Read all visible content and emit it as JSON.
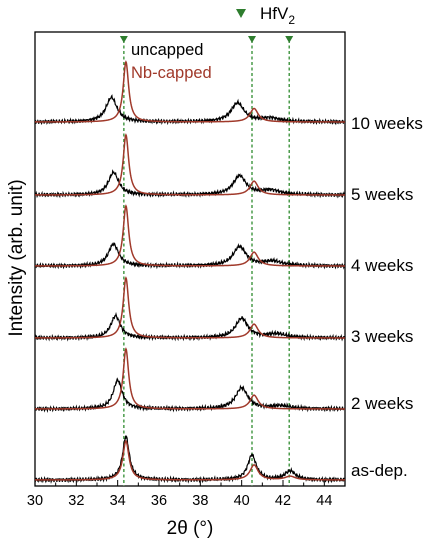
{
  "chart_data": {
    "type": "line",
    "xlabel": "2θ (°)",
    "ylabel": "Intensity (arb. unit)",
    "xlim": [
      30,
      45
    ],
    "x_ticks": [
      "30",
      "32",
      "34",
      "36",
      "38",
      "40",
      "42",
      "44"
    ],
    "reference_label_main": "HfV",
    "reference_label_sub": "2",
    "reference_positions": [
      34.3,
      40.5,
      42.3
    ],
    "legend": [
      {
        "name": "uncapped",
        "color": "#000000"
      },
      {
        "name": "Nb-capped",
        "color": "#a0392a"
      }
    ],
    "samples": [
      {
        "label": "10 weeks",
        "uncapped_peaks": [
          [
            33.7,
            8.2,
            0.32
          ],
          [
            39.8,
            6.3,
            0.38
          ],
          [
            41.4,
            1.2,
            0.55
          ]
        ],
        "capped_peaks": [
          [
            34.4,
            20,
            0.16
          ],
          [
            40.6,
            4.5,
            0.24
          ]
        ]
      },
      {
        "label": "5 weeks",
        "uncapped_peaks": [
          [
            33.8,
            7.5,
            0.3
          ],
          [
            39.9,
            6.3,
            0.38
          ],
          [
            41.4,
            1.5,
            0.55
          ]
        ],
        "capped_peaks": [
          [
            34.4,
            20,
            0.16
          ],
          [
            40.6,
            4.6,
            0.24
          ]
        ]
      },
      {
        "label": "4 weeks",
        "uncapped_peaks": [
          [
            33.8,
            7.3,
            0.3
          ],
          [
            39.9,
            6.4,
            0.38
          ],
          [
            41.5,
            1.5,
            0.55
          ]
        ],
        "capped_peaks": [
          [
            34.4,
            20,
            0.16
          ],
          [
            40.6,
            4.6,
            0.24
          ]
        ]
      },
      {
        "label": "3 weeks",
        "uncapped_peaks": [
          [
            33.9,
            7.4,
            0.28
          ],
          [
            40.0,
            6.5,
            0.36
          ],
          [
            41.7,
            1.3,
            0.55
          ]
        ],
        "capped_peaks": [
          [
            34.4,
            20,
            0.16
          ],
          [
            40.6,
            4.6,
            0.24
          ]
        ]
      },
      {
        "label": "2 weeks",
        "uncapped_peaks": [
          [
            34.0,
            9.6,
            0.26
          ],
          [
            40.0,
            7.0,
            0.36
          ],
          [
            41.9,
            1.0,
            0.55
          ]
        ],
        "capped_peaks": [
          [
            34.4,
            20,
            0.16
          ],
          [
            40.6,
            4.6,
            0.24
          ]
        ]
      },
      {
        "label": "as-dep.",
        "uncapped_peaks": [
          [
            34.4,
            14.5,
            0.2
          ],
          [
            40.5,
            8.3,
            0.25
          ],
          [
            42.35,
            3.0,
            0.3
          ]
        ],
        "capped_peaks": [
          [
            34.4,
            13.0,
            0.18
          ],
          [
            40.6,
            5.0,
            0.24
          ],
          [
            42.35,
            1.2,
            0.3
          ]
        ]
      }
    ]
  }
}
